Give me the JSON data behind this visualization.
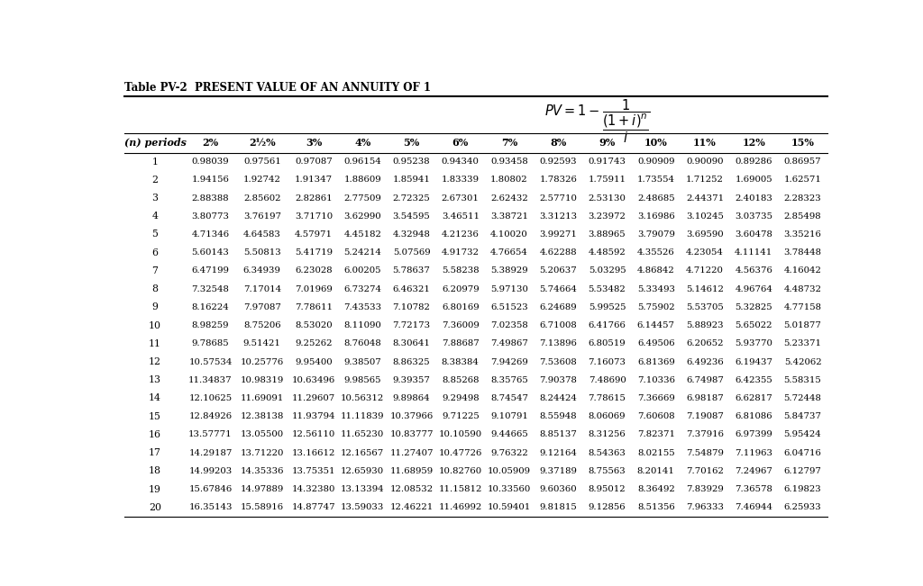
{
  "title": "Table PV-2  PRESENT VALUE OF AN ANNUITY OF 1",
  "columns": [
    "(n) periods",
    "2%",
    "2½%",
    "3%",
    "4%",
    "5%",
    "6%",
    "7%",
    "8%",
    "9%",
    "10%",
    "11%",
    "12%",
    "15%"
  ],
  "rows": [
    [
      1,
      0.98039,
      0.97561,
      0.97087,
      0.96154,
      0.95238,
      0.9434,
      0.93458,
      0.92593,
      0.91743,
      0.90909,
      0.9009,
      0.89286,
      0.86957
    ],
    [
      2,
      1.94156,
      1.92742,
      1.91347,
      1.88609,
      1.85941,
      1.83339,
      1.80802,
      1.78326,
      1.75911,
      1.73554,
      1.71252,
      1.69005,
      1.62571
    ],
    [
      3,
      2.88388,
      2.85602,
      2.82861,
      2.77509,
      2.72325,
      2.67301,
      2.62432,
      2.5771,
      2.5313,
      2.48685,
      2.44371,
      2.40183,
      2.28323
    ],
    [
      4,
      3.80773,
      3.76197,
      3.7171,
      3.6299,
      3.54595,
      3.46511,
      3.38721,
      3.31213,
      3.23972,
      3.16986,
      3.10245,
      3.03735,
      2.85498
    ],
    [
      5,
      4.71346,
      4.64583,
      4.57971,
      4.45182,
      4.32948,
      4.21236,
      4.1002,
      3.99271,
      3.88965,
      3.79079,
      3.6959,
      3.60478,
      3.35216
    ],
    [
      6,
      5.60143,
      5.50813,
      5.41719,
      5.24214,
      5.07569,
      4.91732,
      4.76654,
      4.62288,
      4.48592,
      4.35526,
      4.23054,
      4.11141,
      3.78448
    ],
    [
      7,
      6.47199,
      6.34939,
      6.23028,
      6.00205,
      5.78637,
      5.58238,
      5.38929,
      5.20637,
      5.03295,
      4.86842,
      4.7122,
      4.56376,
      4.16042
    ],
    [
      8,
      7.32548,
      7.17014,
      7.01969,
      6.73274,
      6.46321,
      6.20979,
      5.9713,
      5.74664,
      5.53482,
      5.33493,
      5.14612,
      4.96764,
      4.48732
    ],
    [
      9,
      8.16224,
      7.97087,
      7.78611,
      7.43533,
      7.10782,
      6.80169,
      6.51523,
      6.24689,
      5.99525,
      5.75902,
      5.53705,
      5.32825,
      4.77158
    ],
    [
      10,
      8.98259,
      8.75206,
      8.5302,
      8.1109,
      7.72173,
      7.36009,
      7.02358,
      6.71008,
      6.41766,
      6.14457,
      5.88923,
      5.65022,
      5.01877
    ],
    [
      11,
      9.78685,
      9.51421,
      9.25262,
      8.76048,
      8.30641,
      7.88687,
      7.49867,
      7.13896,
      6.80519,
      6.49506,
      6.20652,
      5.9377,
      5.23371
    ],
    [
      12,
      10.57534,
      10.25776,
      9.954,
      9.38507,
      8.86325,
      8.38384,
      7.94269,
      7.53608,
      7.16073,
      6.81369,
      6.49236,
      6.19437,
      5.42062
    ],
    [
      13,
      11.34837,
      10.98319,
      10.63496,
      9.98565,
      9.39357,
      8.85268,
      8.35765,
      7.90378,
      7.4869,
      7.10336,
      6.74987,
      6.42355,
      5.58315
    ],
    [
      14,
      12.10625,
      11.69091,
      11.29607,
      10.56312,
      9.89864,
      9.29498,
      8.74547,
      8.24424,
      7.78615,
      7.36669,
      6.98187,
      6.62817,
      5.72448
    ],
    [
      15,
      12.84926,
      12.38138,
      11.93794,
      11.11839,
      10.37966,
      9.71225,
      9.10791,
      8.55948,
      8.06069,
      7.60608,
      7.19087,
      6.81086,
      5.84737
    ],
    [
      16,
      13.57771,
      13.055,
      12.5611,
      11.6523,
      10.83777,
      10.1059,
      9.44665,
      8.85137,
      8.31256,
      7.82371,
      7.37916,
      6.97399,
      5.95424
    ],
    [
      17,
      14.29187,
      13.7122,
      13.16612,
      12.16567,
      11.27407,
      10.47726,
      9.76322,
      9.12164,
      8.54363,
      8.02155,
      7.54879,
      7.11963,
      6.04716
    ],
    [
      18,
      14.99203,
      14.35336,
      13.75351,
      12.6593,
      11.68959,
      10.8276,
      10.05909,
      9.37189,
      8.75563,
      8.20141,
      7.70162,
      7.24967,
      6.12797
    ],
    [
      19,
      15.67846,
      14.97889,
      14.3238,
      13.13394,
      12.08532,
      11.15812,
      10.3356,
      9.6036,
      8.95012,
      8.36492,
      7.83929,
      7.36578,
      6.19823
    ],
    [
      20,
      16.35143,
      15.58916,
      14.87747,
      13.59033,
      12.46221,
      11.46992,
      10.59401,
      9.81815,
      9.12856,
      8.51356,
      7.96333,
      7.46944,
      6.25933
    ]
  ],
  "bg_color": "#ffffff",
  "text_color": "#000000",
  "line_color": "#000000"
}
